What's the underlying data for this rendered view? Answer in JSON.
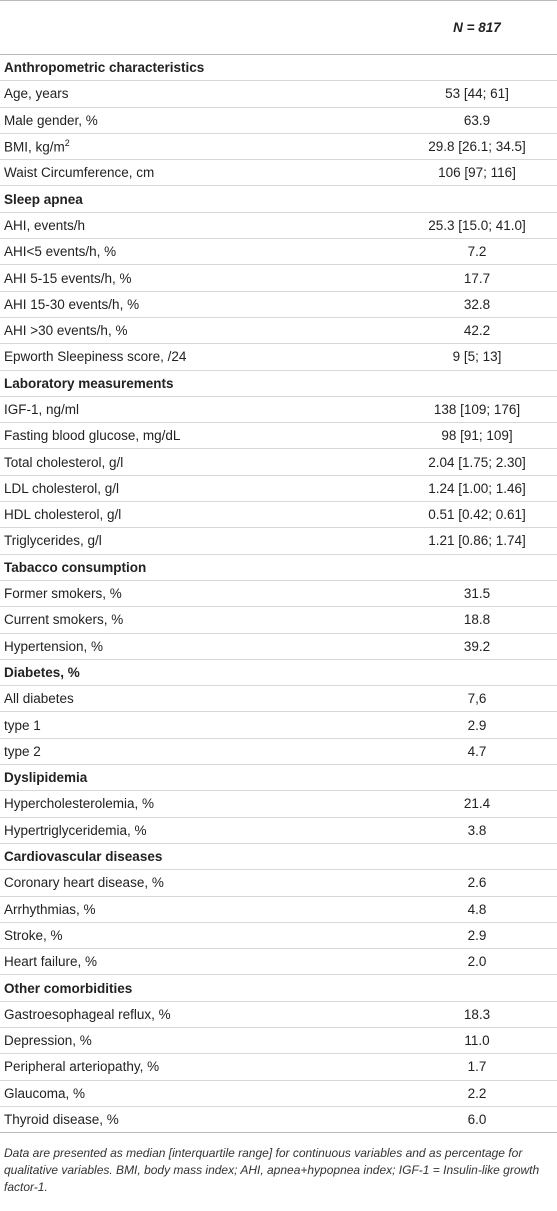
{
  "header": {
    "column_label": "N = 817"
  },
  "sections": [
    {
      "title": "Anthropometric characteristics",
      "rows": [
        {
          "label": "Age, years",
          "value": "53 [44; 61]"
        },
        {
          "label": "Male gender, %",
          "value": "63.9"
        },
        {
          "label": "BMI, kg/m",
          "label_sup": "2",
          "value": "29.8 [26.1; 34.5]"
        },
        {
          "label": "Waist Circumference, cm",
          "value": "106 [97; 116]"
        }
      ]
    },
    {
      "title": "Sleep apnea",
      "rows": [
        {
          "label": "AHI, events/h",
          "value": "25.3 [15.0; 41.0]"
        },
        {
          "label": "AHI<5 events/h, %",
          "value": "7.2"
        },
        {
          "label": "AHI 5-15 events/h, %",
          "value": "17.7"
        },
        {
          "label": "AHI 15-30 events/h, %",
          "value": "32.8"
        },
        {
          "label": "AHI >30 events/h, %",
          "value": "42.2"
        },
        {
          "label": "Epworth Sleepiness score, /24",
          "value": "9 [5; 13]"
        }
      ]
    },
    {
      "title": "Laboratory measurements",
      "rows": [
        {
          "label": "IGF-1, ng/ml",
          "value": "138 [109; 176]"
        },
        {
          "label": "Fasting blood glucose, mg/dL",
          "value": "98 [91; 109]"
        },
        {
          "label": "Total cholesterol, g/l",
          "value": "2.04 [1.75; 2.30]"
        },
        {
          "label": "LDL cholesterol, g/l",
          "value": "1.24 [1.00; 1.46]"
        },
        {
          "label": "HDL cholesterol, g/l",
          "value": "0.51 [0.42; 0.61]"
        },
        {
          "label": "Triglycerides, g/l",
          "value": "1.21 [0.86; 1.74]"
        }
      ]
    },
    {
      "title": "Tabacco consumption",
      "rows": [
        {
          "label": "Former smokers, %",
          "value": "31.5"
        },
        {
          "label": "Current smokers, %",
          "value": "18.8"
        },
        {
          "label": "Hypertension, %",
          "value": "39.2"
        }
      ]
    },
    {
      "title": "Diabetes, %",
      "rows": [
        {
          "label": "All diabetes",
          "value": "7,6"
        },
        {
          "label": "type 1",
          "value": "2.9"
        },
        {
          "label": "type 2",
          "value": "4.7"
        }
      ]
    },
    {
      "title": "Dyslipidemia",
      "rows": [
        {
          "label": "Hypercholesterolemia, %",
          "value": "21.4"
        },
        {
          "label": "Hypertriglyceridemia, %",
          "value": "3.8"
        }
      ]
    },
    {
      "title": "Cardiovascular diseases",
      "rows": [
        {
          "label": "Coronary heart disease, %",
          "value": "2.6"
        },
        {
          "label": "Arrhythmias, %",
          "value": "4.8"
        },
        {
          "label": "Stroke, %",
          "value": "2.9"
        },
        {
          "label": "Heart failure, %",
          "value": "2.0"
        }
      ]
    },
    {
      "title": "Other comorbidities",
      "rows": [
        {
          "label": "Gastroesophageal reflux, %",
          "value": "18.3"
        },
        {
          "label": "Depression, %",
          "value": "11.0"
        },
        {
          "label": "Peripheral arteriopathy, %",
          "value": "1.7"
        },
        {
          "label": "Glaucoma, %",
          "value": "2.2"
        },
        {
          "label": "Thyroid disease, %",
          "value": "6.0"
        }
      ]
    }
  ],
  "footnote": "Data are presented as median [interquartile range] for continuous variables and as percentage for qualitative variables. BMI, body mass index; AHI, apnea+hypopnea index; IGF-1 = Insulin-like growth factor-1."
}
